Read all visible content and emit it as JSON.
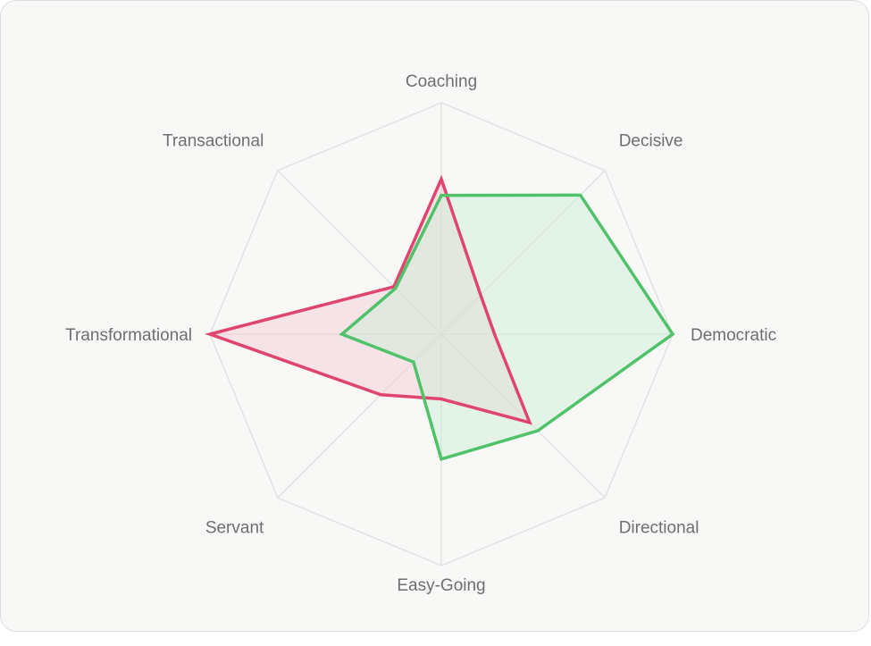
{
  "chart_data": {
    "type": "radar",
    "axes": [
      "Coaching",
      "Decisive",
      "Democratic",
      "Directional",
      "Easy-Going",
      "Servant",
      "Transformational",
      "Transactional"
    ],
    "range": [
      0,
      100
    ],
    "grid": true,
    "series": [
      {
        "color": "#e0456f",
        "fill": "#f2c9d2",
        "values": [
          67,
          24,
          23,
          54,
          28,
          37,
          100,
          29
        ]
      },
      {
        "color": "#4fc26a",
        "fill": "#cdeed4",
        "values": [
          60,
          85,
          100,
          59,
          54,
          17,
          43,
          28
        ]
      }
    ]
  }
}
